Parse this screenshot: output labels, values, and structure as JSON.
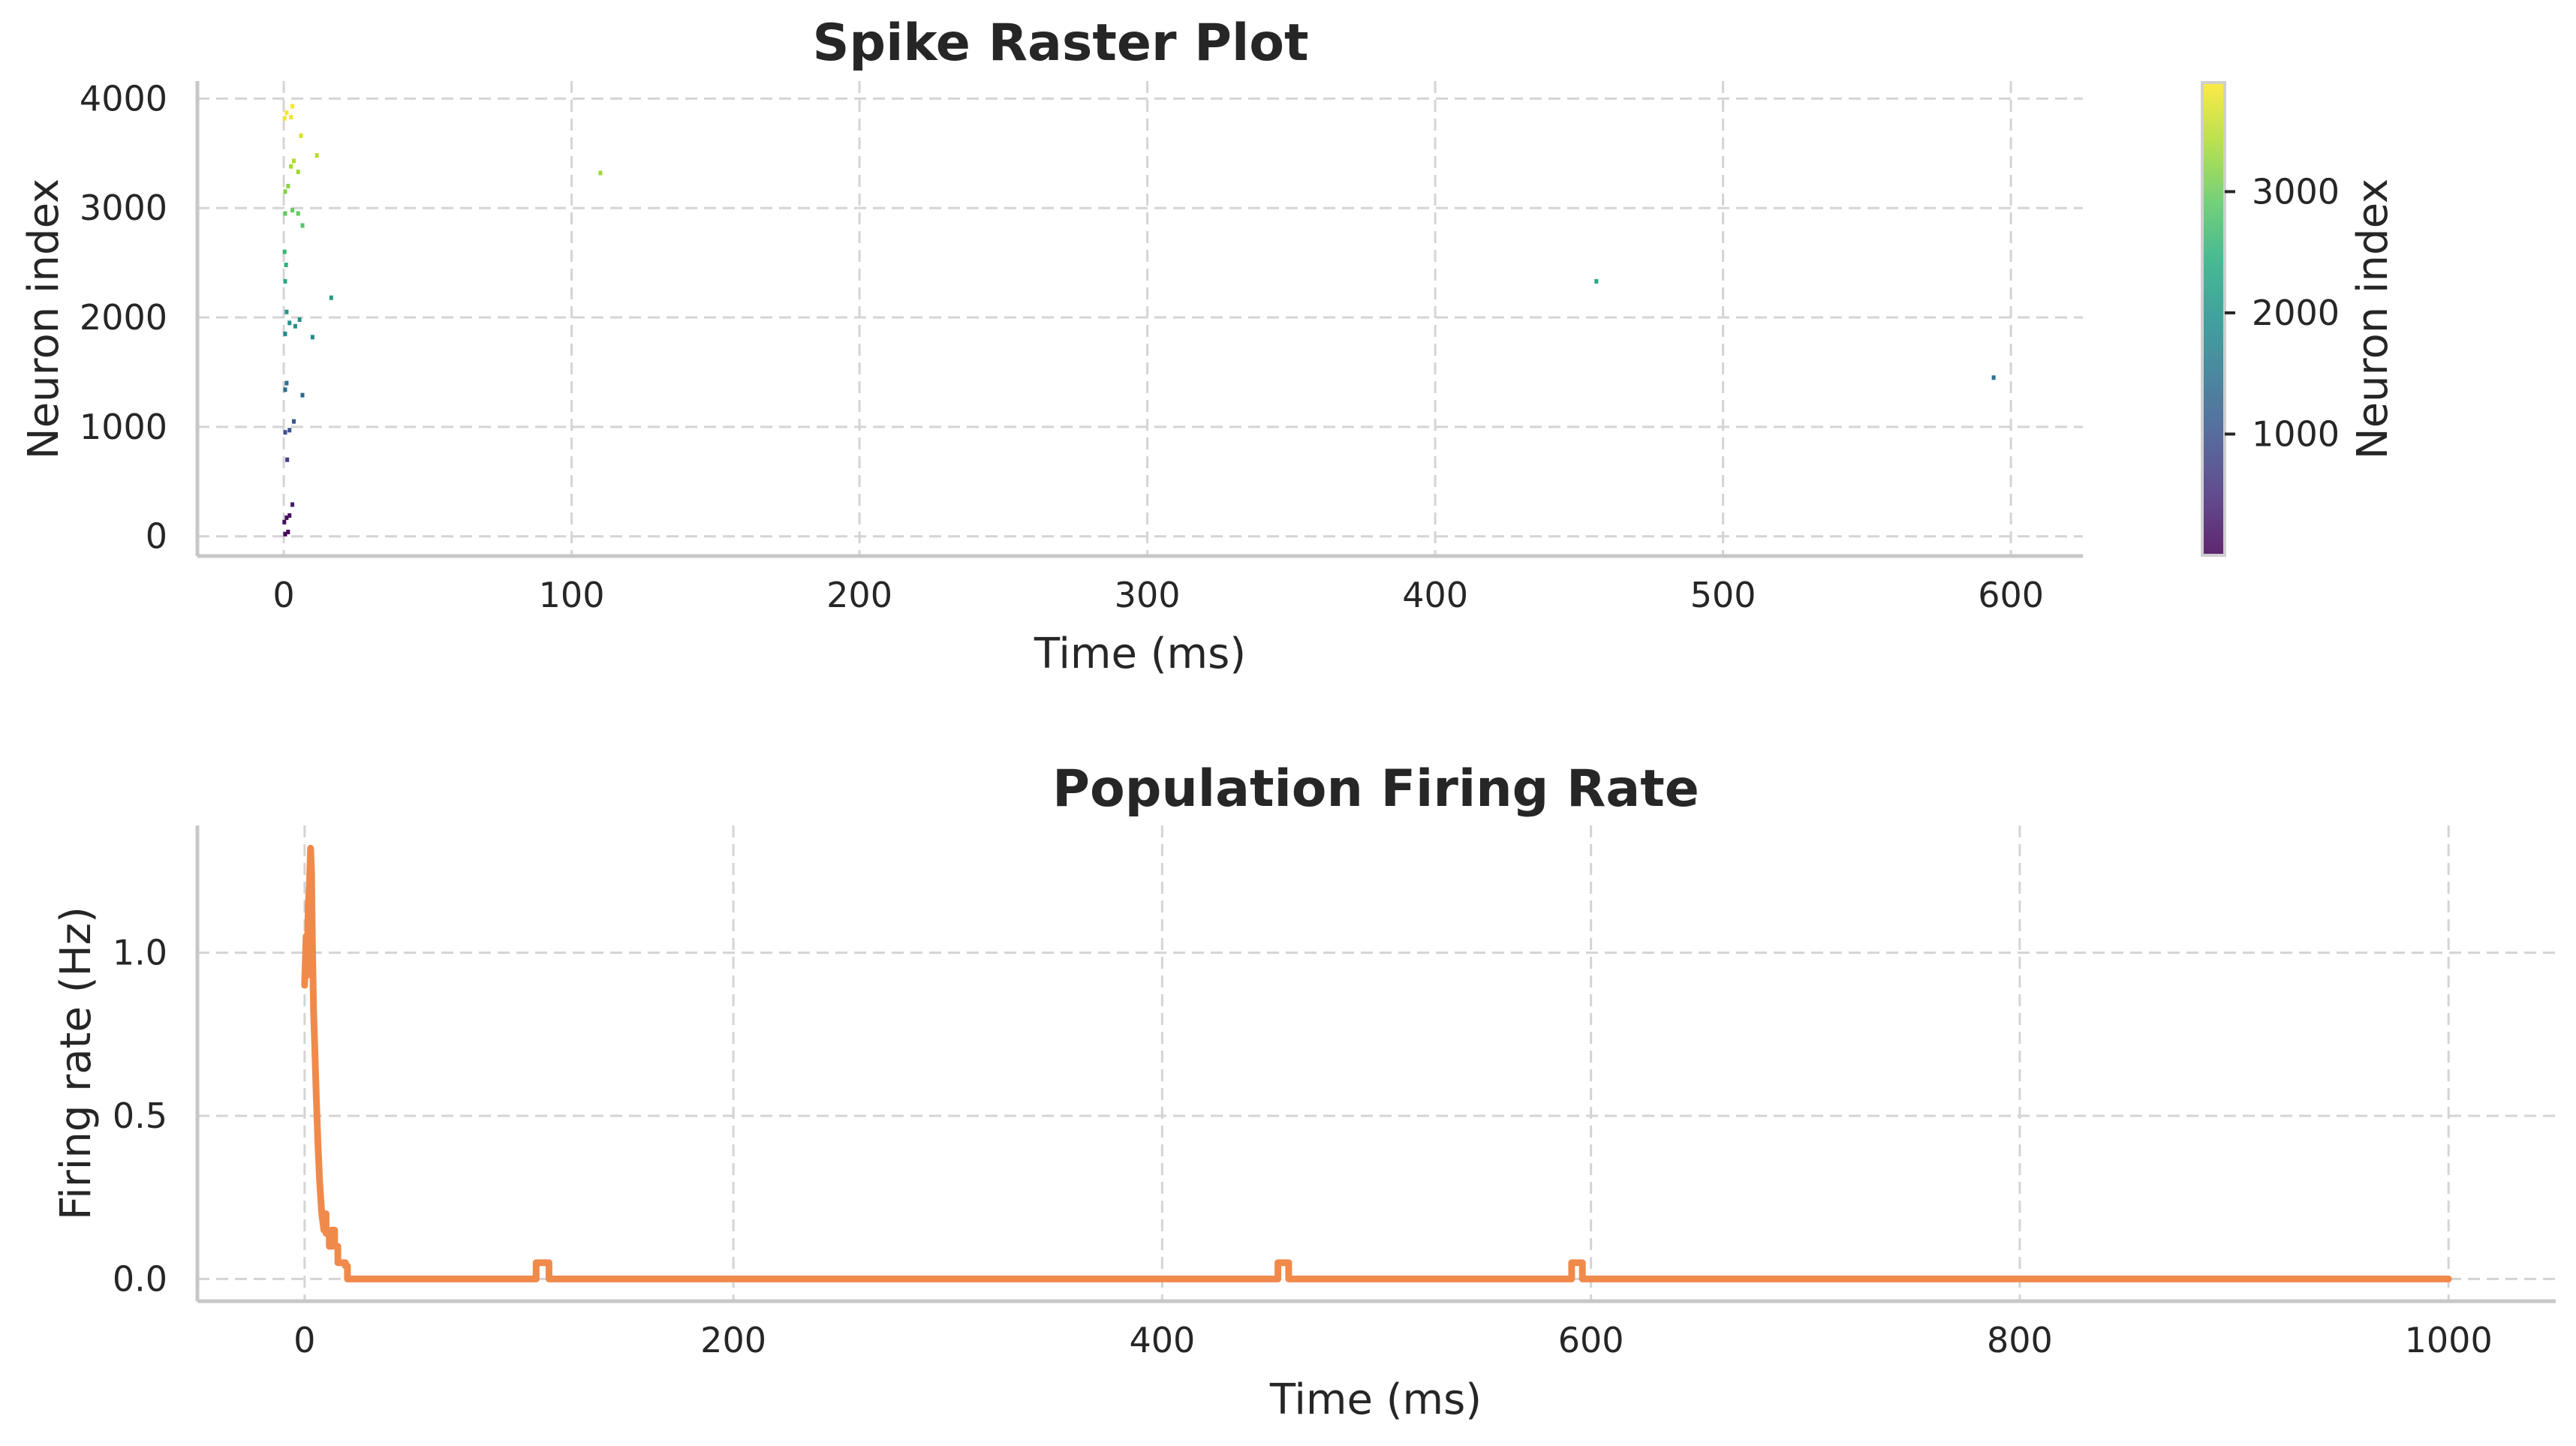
{
  "chart_data": [
    {
      "type": "scatter",
      "title": "Spike Raster Plot",
      "xlabel": "Time (ms)",
      "ylabel": "Neuron index",
      "xlim": [
        -30,
        625
      ],
      "ylim": [
        -180,
        4160
      ],
      "xticks": [
        0,
        100,
        200,
        300,
        400,
        500,
        600
      ],
      "yticks": [
        0,
        1000,
        2000,
        3000,
        4000
      ],
      "grid": true,
      "colormap": "viridis",
      "colorbar": {
        "label": "Neuron index",
        "range": [
          0,
          3900
        ],
        "ticks": [
          1000,
          2000,
          3000
        ]
      },
      "points": [
        {
          "t": 0.5,
          "n": 20
        },
        {
          "t": 1.5,
          "n": 40
        },
        {
          "t": 0.2,
          "n": 130
        },
        {
          "t": 1.0,
          "n": 170
        },
        {
          "t": 2.0,
          "n": 190
        },
        {
          "t": 3.0,
          "n": 290
        },
        {
          "t": 1.2,
          "n": 700
        },
        {
          "t": 0.5,
          "n": 950
        },
        {
          "t": 2.0,
          "n": 970
        },
        {
          "t": 3.5,
          "n": 1050
        },
        {
          "t": 0.5,
          "n": 1340
        },
        {
          "t": 1.0,
          "n": 1400
        },
        {
          "t": 6.5,
          "n": 1290
        },
        {
          "t": 10.0,
          "n": 1820
        },
        {
          "t": 0.5,
          "n": 1850
        },
        {
          "t": 2.0,
          "n": 1950
        },
        {
          "t": 1.0,
          "n": 2050
        },
        {
          "t": 4.0,
          "n": 1920
        },
        {
          "t": 5.5,
          "n": 1980
        },
        {
          "t": 16.5,
          "n": 2180
        },
        {
          "t": 0.5,
          "n": 2330
        },
        {
          "t": 0.8,
          "n": 2480
        },
        {
          "t": 0.3,
          "n": 2600
        },
        {
          "t": 0.5,
          "n": 2950
        },
        {
          "t": 3.0,
          "n": 2980
        },
        {
          "t": 5.0,
          "n": 2950
        },
        {
          "t": 6.5,
          "n": 2840
        },
        {
          "t": 0.5,
          "n": 3150
        },
        {
          "t": 1.5,
          "n": 3200
        },
        {
          "t": 2.5,
          "n": 3380
        },
        {
          "t": 3.5,
          "n": 3430
        },
        {
          "t": 5.0,
          "n": 3330
        },
        {
          "t": 6.0,
          "n": 3660
        },
        {
          "t": 11.5,
          "n": 3480
        },
        {
          "t": 0.3,
          "n": 3820
        },
        {
          "t": 1.0,
          "n": 3870
        },
        {
          "t": 2.5,
          "n": 3830
        },
        {
          "t": 3.0,
          "n": 3930
        },
        {
          "t": 110.0,
          "n": 3320
        },
        {
          "t": 456.0,
          "n": 2330
        },
        {
          "t": 594.0,
          "n": 1450
        }
      ]
    },
    {
      "type": "line",
      "title": "Population Firing Rate",
      "xlabel": "Time (ms)",
      "ylabel": "Firing rate (Hz)",
      "xlim": [
        -50,
        1050
      ],
      "ylim": [
        -0.068,
        1.39
      ],
      "xticks": [
        0,
        200,
        400,
        600,
        800,
        1000
      ],
      "yticks": [
        0.0,
        0.5,
        1.0
      ],
      "yticklabels": [
        "0.0",
        "0.5",
        "1.0"
      ],
      "grid": true,
      "color": "#f08a4b",
      "series": [
        {
          "x": [
            0,
            0.7,
            1.2,
            1.7,
            2.2,
            2.8,
            3.2,
            3.6,
            4.2,
            4.8,
            5.5,
            6.2,
            7.0,
            8.0,
            9.0,
            10.0,
            10.0,
            11.5,
            11.5,
            12.5,
            12.5,
            14.0,
            14.0,
            15.5,
            15.5,
            19.0,
            19.0,
            20.0,
            20.0,
            108,
            108,
            114,
            114,
            454,
            454,
            459,
            459,
            591,
            591,
            596,
            596,
            1000
          ],
          "y": [
            0.9,
            1.05,
            0.93,
            1.15,
            1.2,
            1.32,
            1.25,
            1.05,
            0.82,
            0.7,
            0.55,
            0.42,
            0.3,
            0.2,
            0.15,
            0.2,
            0.14,
            0.14,
            0.1,
            0.1,
            0.15,
            0.15,
            0.1,
            0.1,
            0.05,
            0.05,
            0.04,
            0.04,
            0.0,
            0.0,
            0.05,
            0.05,
            0.0,
            0.0,
            0.05,
            0.05,
            0.0,
            0.0,
            0.05,
            0.05,
            0.0,
            0.0
          ]
        }
      ]
    }
  ]
}
